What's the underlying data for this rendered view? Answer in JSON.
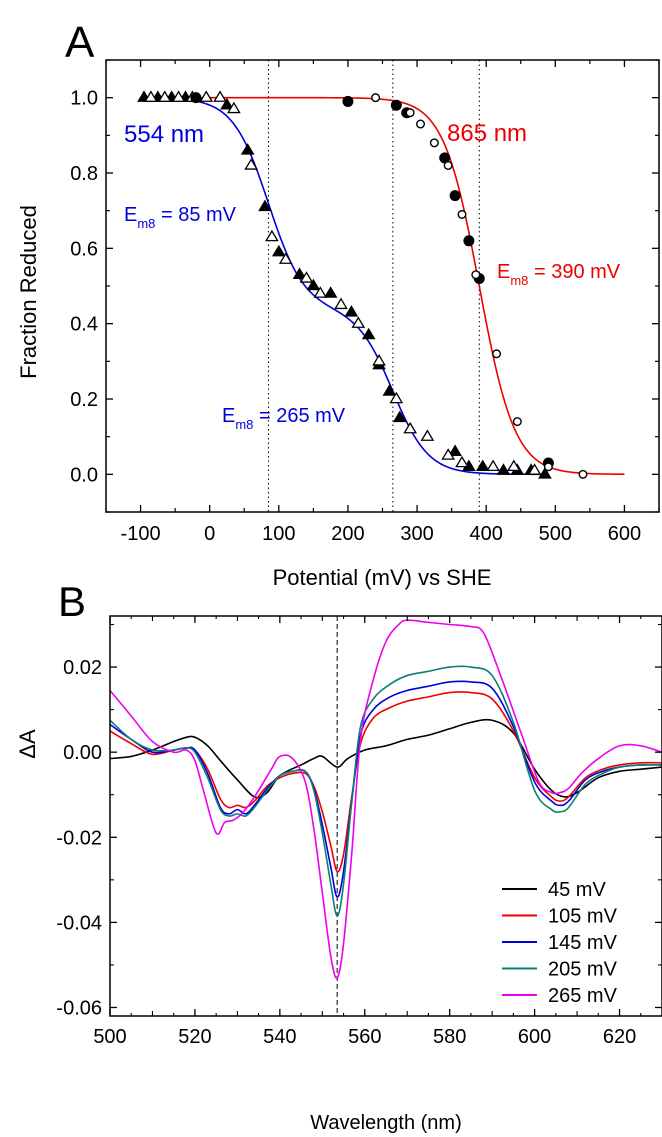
{
  "chart_data": [
    {
      "panel_label": "A",
      "type": "scatter",
      "xlabel": "Potential (mV) vs SHE",
      "ylabel": "Fraction Reduced",
      "xlim": [
        -150,
        650
      ],
      "ylim": [
        -0.1,
        1.1
      ],
      "xticks": [
        -100,
        0,
        100,
        200,
        300,
        400,
        500,
        600
      ],
      "xtick_labels": [
        "-100",
        "0",
        "100",
        "200",
        "300",
        "400",
        "500",
        "600"
      ],
      "yticks": [
        0.0,
        0.2,
        0.4,
        0.6,
        0.8,
        1.0
      ],
      "ytick_labels": [
        "0.0",
        "0.2",
        "0.4",
        "0.6",
        "0.8",
        "1.0"
      ],
      "vlines": [
        85,
        265,
        390
      ],
      "colors": {
        "blue": "#0000dd",
        "red": "#ee0000",
        "black": "#000000"
      },
      "labels": {
        "blue_wavelength": "554 nm",
        "red_wavelength": "865 nm",
        "em1_main": "E",
        "em1_sub": "m8",
        "em1_rest": " = 85 mV",
        "em2_main": "E",
        "em2_sub": "m8",
        "em2_rest": " = 265 mV",
        "em3_main": "E",
        "em3_sub": "m8",
        "em3_rest": " = 390 mV"
      },
      "fit_554": {
        "n": 1,
        "components": [
          {
            "em": 85,
            "amp": 0.56
          },
          {
            "em": 265,
            "amp": 0.44
          }
        ]
      },
      "fit_865": {
        "n": 1,
        "components": [
          {
            "em": 390,
            "amp": 1.0
          }
        ]
      },
      "series": [
        {
          "name": "554 nm filled",
          "marker": "triangle-filled",
          "x": [
            -95,
            -75,
            -55,
            -35,
            25,
            55,
            80,
            100,
            130,
            150,
            175,
            205,
            230,
            245,
            260,
            275,
            355,
            375,
            395,
            425,
            445,
            465,
            485
          ],
          "y": [
            1.0,
            1.0,
            1.0,
            1.0,
            0.98,
            0.86,
            0.71,
            0.59,
            0.53,
            0.5,
            0.48,
            0.43,
            0.37,
            0.29,
            0.22,
            0.15,
            0.06,
            0.02,
            0.02,
            0.01,
            0.01,
            0.01,
            0.0
          ]
        },
        {
          "name": "554 nm open",
          "marker": "triangle-open",
          "x": [
            -85,
            -65,
            -45,
            -25,
            -5,
            15,
            35,
            60,
            90,
            110,
            140,
            160,
            190,
            215,
            245,
            270,
            290,
            315,
            345,
            365,
            410,
            440,
            470
          ],
          "y": [
            1.0,
            1.0,
            1.0,
            1.0,
            1.0,
            1.0,
            0.97,
            0.82,
            0.63,
            0.57,
            0.52,
            0.48,
            0.45,
            0.4,
            0.3,
            0.2,
            0.12,
            0.1,
            0.05,
            0.03,
            0.02,
            0.02,
            0.01
          ]
        },
        {
          "name": "865 nm filled",
          "marker": "circle-filled",
          "x": [
            -20,
            200,
            270,
            285,
            340,
            355,
            375,
            390,
            490
          ],
          "y": [
            1.0,
            0.99,
            0.98,
            0.96,
            0.84,
            0.74,
            0.62,
            0.52,
            0.03
          ]
        },
        {
          "name": "865 nm open",
          "marker": "circle-open",
          "x": [
            240,
            290,
            305,
            325,
            345,
            365,
            385,
            415,
            445,
            490,
            540
          ],
          "y": [
            1.0,
            0.96,
            0.93,
            0.88,
            0.82,
            0.69,
            0.53,
            0.32,
            0.14,
            0.02,
            0.0
          ]
        }
      ]
    },
    {
      "panel_label": "B",
      "type": "line",
      "xlabel": "Wavelength (nm)",
      "ylabel": "ΔA",
      "xlim": [
        500,
        630
      ],
      "ylim": [
        -0.062,
        0.032
      ],
      "xticks": [
        500,
        520,
        540,
        560,
        580,
        600,
        620
      ],
      "xtick_labels": [
        "500",
        "520",
        "540",
        "560",
        "580",
        "600",
        "620"
      ],
      "yticks": [
        -0.06,
        -0.04,
        -0.02,
        0.0,
        0.02
      ],
      "ytick_labels": [
        "-0.06",
        "-0.04",
        "-0.02",
        "0.00",
        "0.02"
      ],
      "vline": 553.5,
      "legend_position": "bottom-right",
      "series": [
        {
          "name": "45 mV",
          "color": "#000000",
          "x": [
            500,
            505,
            510,
            515,
            518,
            520,
            523,
            526,
            530,
            534,
            537,
            540,
            545,
            548,
            550,
            553.5,
            556,
            560,
            565,
            570,
            575,
            580,
            585,
            590,
            595,
            600,
            604,
            607,
            610,
            615,
            620,
            625,
            630
          ],
          "y": [
            -0.0015,
            -0.001,
            0.0005,
            0.0025,
            0.0035,
            0.0035,
            0.0015,
            -0.002,
            -0.0065,
            -0.0105,
            -0.0095,
            -0.0055,
            -0.003,
            -0.0015,
            -0.001,
            -0.0035,
            -0.0015,
            0.0005,
            0.0015,
            0.003,
            0.004,
            0.0055,
            0.007,
            0.0075,
            0.0045,
            -0.004,
            -0.009,
            -0.0105,
            -0.0095,
            -0.006,
            -0.0045,
            -0.004,
            -0.0035
          ]
        },
        {
          "name": "105 mV",
          "color": "#ee0000",
          "x": [
            500,
            505,
            510,
            515,
            518,
            520,
            523,
            526,
            528,
            530,
            532,
            534,
            537,
            540,
            543,
            546,
            548,
            550,
            552,
            553.5,
            555,
            557,
            559,
            562,
            566,
            570,
            575,
            580,
            585,
            590,
            595,
            600,
            604,
            606,
            608,
            612,
            616,
            620,
            625,
            630
          ],
          "y": [
            0.005,
            0.002,
            -0.0005,
            0.0005,
            0.001,
            0.0005,
            -0.004,
            -0.011,
            -0.013,
            -0.0125,
            -0.013,
            -0.0115,
            -0.008,
            -0.006,
            -0.005,
            -0.005,
            -0.008,
            -0.014,
            -0.022,
            -0.028,
            -0.024,
            -0.01,
            0.002,
            0.008,
            0.0105,
            0.012,
            0.013,
            0.014,
            0.014,
            0.0125,
            0.005,
            -0.006,
            -0.0105,
            -0.0115,
            -0.0105,
            -0.006,
            -0.004,
            -0.003,
            -0.0025,
            -0.0025
          ]
        },
        {
          "name": "145 mV",
          "color": "#0000dd",
          "x": [
            500,
            505,
            510,
            515,
            518,
            520,
            523,
            526,
            528,
            530,
            532,
            534,
            537,
            540,
            543,
            546,
            548,
            550,
            552,
            553.5,
            555,
            557,
            559,
            562,
            566,
            570,
            575,
            580,
            585,
            590,
            595,
            600,
            604,
            606,
            608,
            612,
            616,
            620,
            625,
            630
          ],
          "y": [
            0.0065,
            0.003,
            0.0,
            0.0005,
            0.001,
            0.0005,
            -0.005,
            -0.013,
            -0.0145,
            -0.0135,
            -0.0145,
            -0.0125,
            -0.0085,
            -0.0055,
            -0.0045,
            -0.0045,
            -0.0085,
            -0.017,
            -0.027,
            -0.034,
            -0.028,
            -0.011,
            0.004,
            0.01,
            0.013,
            0.0145,
            0.0155,
            0.0165,
            0.0165,
            0.015,
            0.006,
            -0.007,
            -0.0115,
            -0.0125,
            -0.0115,
            -0.0065,
            -0.0045,
            -0.0035,
            -0.003,
            -0.003
          ]
        },
        {
          "name": "205 mV",
          "color": "#0a7f76",
          "x": [
            500,
            505,
            510,
            515,
            518,
            520,
            523,
            526,
            528,
            530,
            532,
            534,
            537,
            540,
            543,
            546,
            548,
            550,
            552,
            553.5,
            555,
            557,
            559,
            562,
            566,
            570,
            575,
            580,
            585,
            590,
            595,
            600,
            604,
            606,
            608,
            612,
            616,
            620,
            625,
            630
          ],
          "y": [
            0.0075,
            0.003,
            0.0005,
            0.0005,
            0.001,
            0.0,
            -0.006,
            -0.0135,
            -0.015,
            -0.0145,
            -0.015,
            -0.013,
            -0.009,
            -0.0055,
            -0.0045,
            -0.0045,
            -0.009,
            -0.019,
            -0.031,
            -0.0385,
            -0.031,
            -0.011,
            0.006,
            0.0125,
            0.016,
            0.018,
            0.019,
            0.02,
            0.02,
            0.018,
            0.007,
            -0.009,
            -0.0135,
            -0.014,
            -0.013,
            -0.0075,
            -0.005,
            -0.0035,
            -0.003,
            -0.003
          ]
        },
        {
          "name": "265 mV",
          "color": "#ee00ee",
          "x": [
            500,
            505,
            510,
            515,
            518,
            520,
            522,
            525,
            527,
            529,
            531,
            533,
            535,
            538,
            540,
            543,
            546,
            548,
            550,
            552,
            553.5,
            555,
            557,
            559,
            562,
            565,
            568,
            570,
            575,
            580,
            585,
            588,
            592,
            597,
            601,
            604,
            606,
            608,
            611,
            615,
            620,
            625,
            630
          ],
          "y": [
            0.0145,
            0.0085,
            0.0025,
            0.0,
            0.0005,
            -0.002,
            -0.009,
            -0.019,
            -0.0165,
            -0.016,
            -0.0145,
            -0.012,
            -0.009,
            -0.004,
            -0.001,
            -0.0015,
            -0.007,
            -0.018,
            -0.033,
            -0.048,
            -0.053,
            -0.045,
            -0.023,
            0.003,
            0.017,
            0.026,
            0.03,
            0.031,
            0.0305,
            0.03,
            0.0295,
            0.028,
            0.018,
            0.004,
            -0.007,
            -0.0095,
            -0.0095,
            -0.0085,
            -0.005,
            -0.0015,
            0.0015,
            0.0015,
            0.0
          ]
        }
      ]
    }
  ]
}
